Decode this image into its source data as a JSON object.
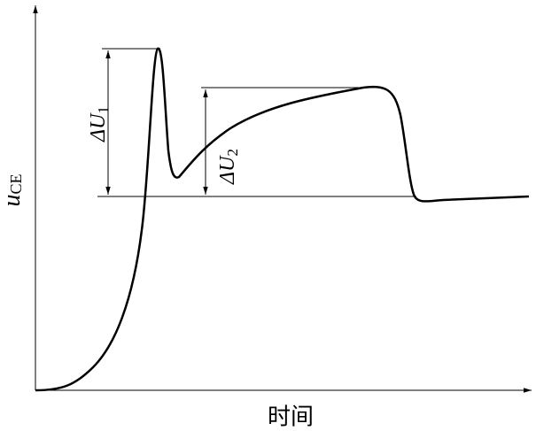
{
  "axes": {
    "y_label": {
      "main": "u",
      "sub": "CE"
    },
    "x_label": "时间"
  },
  "annotations": [
    {
      "main": "ΔU",
      "sub": "1"
    },
    {
      "main": "ΔU",
      "sub": "2"
    }
  ]
}
